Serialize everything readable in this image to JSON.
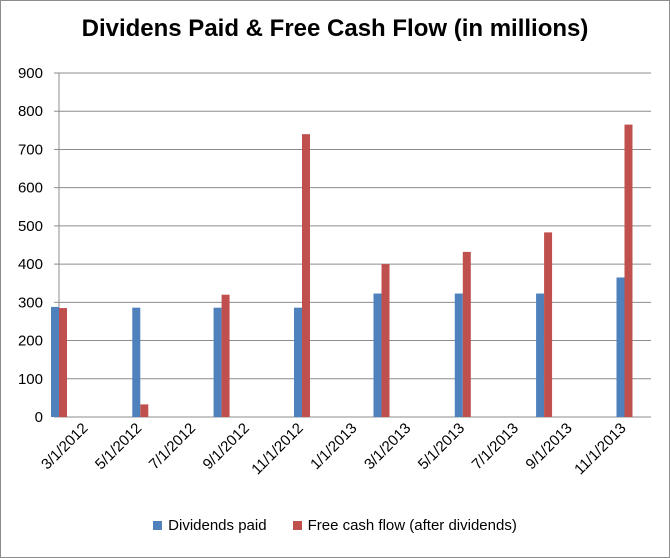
{
  "chart_data": {
    "type": "bar",
    "title": "Dividens Paid & Free Cash Flow (in millions)",
    "xlabel": "",
    "ylabel": "",
    "ylim": [
      0,
      900
    ],
    "yticks": [
      0,
      100,
      200,
      300,
      400,
      500,
      600,
      700,
      800,
      900
    ],
    "grid": true,
    "legend_position": "bottom",
    "x_tick_labels": [
      "3/1/2012",
      "5/1/2012",
      "7/1/2012",
      "9/1/2012",
      "11/1/2012",
      "1/1/2013",
      "3/1/2013",
      "5/1/2013",
      "7/1/2013",
      "9/1/2013",
      "11/1/2013"
    ],
    "x_start": "2012-03-01",
    "x_end": "2013-12-31",
    "dates": [
      "2012-03-01",
      "2012-06-01",
      "2012-09-01",
      "2012-12-01",
      "2013-03-01",
      "2013-06-01",
      "2013-09-01",
      "2013-12-01"
    ],
    "series": [
      {
        "name": "Dividends paid",
        "color": "#4f81bd",
        "values": [
          288,
          286,
          286,
          286,
          323,
          323,
          323,
          365
        ]
      },
      {
        "name": "Free cash flow (after dividends)",
        "color": "#c0504d",
        "values": [
          285,
          33,
          320,
          740,
          400,
          432,
          483,
          765
        ]
      }
    ]
  }
}
